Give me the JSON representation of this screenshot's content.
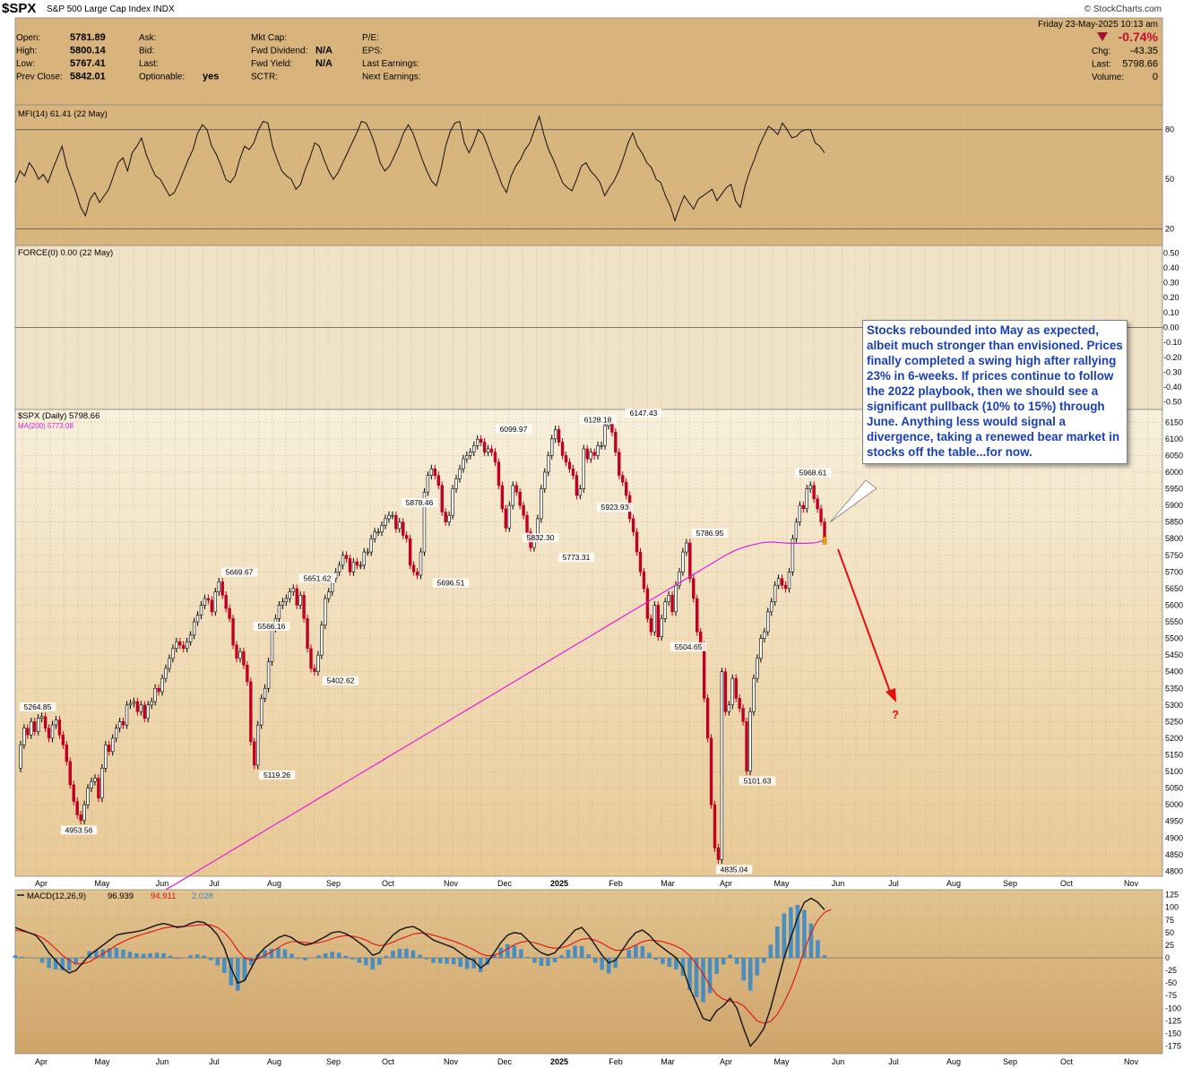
{
  "header": {
    "symbol": "$SPX",
    "name": "S&P 500 Large Cap Index",
    "exchange": "INDX",
    "brand": "© StockCharts.com",
    "date": "Friday  23-May-2025  10:13 am",
    "pct_change": "-0.74%",
    "fields_left": [
      {
        "label": "Open:",
        "value": "5781.89"
      },
      {
        "label": "High:",
        "value": "5800.14"
      },
      {
        "label": "Low:",
        "value": "5767.41"
      },
      {
        "label": "Prev Close:",
        "value": "5842.01"
      }
    ],
    "fields_mid": [
      {
        "label": "Ask:",
        "value": ""
      },
      {
        "label": "Bid:",
        "value": ""
      },
      {
        "label": "Last:",
        "value": ""
      },
      {
        "label": "Optionable:",
        "value": "yes"
      }
    ],
    "fields_mid2": [
      {
        "label": "Mkt Cap:",
        "value": ""
      },
      {
        "label": "Fwd Dividend:",
        "value": "N/A"
      },
      {
        "label": "Fwd Yield:",
        "value": "N/A"
      },
      {
        "label": "SCTR:",
        "value": ""
      }
    ],
    "fields_right": [
      {
        "label": "P/E:",
        "value": ""
      },
      {
        "label": "EPS:",
        "value": ""
      },
      {
        "label": "Last Earnings:",
        "value": ""
      },
      {
        "label": "Next Earnings:",
        "value": ""
      }
    ],
    "fields_far": [
      {
        "label": "Chg:",
        "value": "-43.35"
      },
      {
        "label": "Last:",
        "value": "5798.66"
      },
      {
        "label": "Volume:",
        "value": "0"
      }
    ]
  },
  "colors": {
    "panel_bg": "#d7b27b",
    "grid": "#b99257",
    "ma": "#e020e0",
    "signal": "#e01010",
    "up": "#000000",
    "down": "#c00020",
    "hist": "#3a8ac8",
    "callout_text": "#1a3fb4",
    "arrow": "#e01010"
  },
  "chart_data": [
    {
      "type": "line",
      "title": "MFI(14) 61.41 (22 May)",
      "ylim": [
        10,
        95
      ],
      "yticks": [
        20,
        50,
        80
      ],
      "reference_lines": [
        20,
        80
      ],
      "series": [
        {
          "name": "MFI(14)",
          "values": [
            48,
            55,
            52,
            60,
            56,
            50,
            53,
            48,
            56,
            63,
            70,
            58,
            50,
            42,
            33,
            28,
            38,
            42,
            36,
            40,
            44,
            52,
            60,
            63,
            55,
            66,
            70,
            75,
            65,
            58,
            52,
            50,
            45,
            40,
            42,
            48,
            55,
            62,
            68,
            78,
            83,
            80,
            70,
            65,
            58,
            50,
            48,
            52,
            62,
            70,
            68,
            72,
            80,
            85,
            84,
            70,
            62,
            55,
            52,
            50,
            44,
            47,
            56,
            63,
            72,
            70,
            62,
            55,
            50,
            54,
            60,
            66,
            72,
            78,
            85,
            84,
            78,
            70,
            60,
            55,
            58,
            64,
            70,
            78,
            83,
            78,
            70,
            62,
            55,
            49,
            46,
            56,
            70,
            79,
            84,
            85,
            72,
            66,
            72,
            80,
            77,
            70,
            62,
            55,
            47,
            42,
            52,
            58,
            62,
            68,
            72,
            80,
            88,
            77,
            68,
            62,
            55,
            48,
            45,
            43,
            50,
            58,
            60,
            55,
            52,
            48,
            40,
            45,
            49,
            55,
            63,
            72,
            78,
            70,
            66,
            60,
            57,
            50,
            48,
            40,
            34,
            25,
            33,
            40,
            36,
            32,
            38,
            40,
            42,
            44,
            37,
            41,
            45,
            47,
            37,
            33,
            46,
            55,
            62,
            70,
            76,
            82,
            80,
            77,
            84,
            80,
            75,
            76,
            79,
            80,
            80,
            72,
            70,
            66
          ]
        }
      ]
    },
    {
      "type": "line",
      "title": "FORCE(0) 0.00 (22 May)",
      "ylim": [
        -0.55,
        0.55
      ],
      "yticks": [
        -0.5,
        -0.4,
        -0.3,
        -0.2,
        -0.1,
        0.0,
        0.1,
        0.2,
        0.3,
        0.4,
        0.5
      ],
      "ytick_labels": [
        "-0.50",
        "-0.40",
        "-0.30",
        "-0.20",
        "-0.10",
        "0.00",
        "0.10",
        "0.20",
        "0.30",
        "0.40",
        "0.50"
      ],
      "series": [
        {
          "name": "FORCE(0)",
          "values": [
            0
          ]
        }
      ]
    },
    {
      "type": "line",
      "title": "$SPX (Daily) 5798.66",
      "legend": [
        "$SPX (Daily) 5798.66",
        "MA(200) 5773.08"
      ],
      "legend_position": "top-left",
      "ylim": [
        4785,
        6175
      ],
      "yticks": [
        4800,
        4850,
        4900,
        4950,
        5000,
        5050,
        5100,
        5150,
        5200,
        5250,
        5300,
        5350,
        5400,
        5450,
        5500,
        5550,
        5600,
        5650,
        5700,
        5750,
        5800,
        5850,
        5900,
        5950,
        6000,
        6050,
        6100,
        6150
      ],
      "x_labels": [
        "Apr",
        "May",
        "Jun",
        "Jul",
        "Aug",
        "Sep",
        "Oct",
        "Nov",
        "Dec",
        "2025",
        "Feb",
        "Mar",
        "Apr",
        "May",
        "Jun",
        "Jul",
        "Aug",
        "Sep",
        "Oct",
        "Nov"
      ],
      "series": [
        {
          "name": "$SPX (Daily)",
          "values": [
            5110,
            5180,
            5230,
            5210,
            5250,
            5220,
            5260,
            5265,
            5230,
            5200,
            5240,
            5255,
            5210,
            5180,
            5130,
            5060,
            5010,
            4970,
            4953,
            5000,
            5050,
            5070,
            5080,
            5020,
            5110,
            5180,
            5160,
            5200,
            5230,
            5250,
            5240,
            5300,
            5305,
            5310,
            5280,
            5300,
            5260,
            5300,
            5310,
            5350,
            5340,
            5380,
            5410,
            5440,
            5470,
            5490,
            5480,
            5470,
            5490,
            5510,
            5550,
            5570,
            5600,
            5620,
            5615,
            5580,
            5640,
            5670,
            5630,
            5590,
            5560,
            5480,
            5440,
            5460,
            5420,
            5370,
            5190,
            5119,
            5240,
            5320,
            5350,
            5430,
            5530,
            5560,
            5600,
            5610,
            5620,
            5640,
            5650,
            5600,
            5630,
            5560,
            5470,
            5410,
            5400,
            5450,
            5540,
            5620,
            5640,
            5680,
            5700,
            5720,
            5750,
            5740,
            5700,
            5730,
            5720,
            5720,
            5760,
            5760,
            5800,
            5820,
            5820,
            5840,
            5860,
            5870,
            5870,
            5830,
            5850,
            5810,
            5800,
            5720,
            5700,
            5690,
            5760,
            5940,
            5990,
            6010,
            5990,
            5960,
            5880,
            5850,
            5870,
            5950,
            5980,
            6010,
            6040,
            6050,
            6060,
            6080,
            6099,
            6090,
            6060,
            6070,
            6060,
            6030,
            5960,
            5890,
            5832,
            5900,
            5960,
            5940,
            5900,
            5870,
            5820,
            5773,
            5800,
            5860,
            5950,
            6000,
            6050,
            6100,
            6128,
            6090,
            6050,
            6030,
            6010,
            5990,
            5930,
            5950,
            6070,
            6040,
            6060,
            6050,
            6080,
            6080,
            6140,
            6147,
            6120,
            6060,
            5990,
            5970,
            5930,
            5860,
            5820,
            5760,
            5700,
            5650,
            5560,
            5520,
            5600,
            5505,
            5560,
            5610,
            5630,
            5580,
            5660,
            5700,
            5760,
            5787,
            5680,
            5620,
            5520,
            5480,
            5320,
            5200,
            5000,
            4870,
            4835,
            5400,
            5280,
            5300,
            5380,
            5320,
            5290,
            5250,
            5101,
            5280,
            5380,
            5440,
            5500,
            5520,
            5580,
            5610,
            5660,
            5680,
            5660,
            5650,
            5700,
            5800,
            5850,
            5900,
            5890,
            5950,
            5960,
            5920,
            5890,
            5850,
            5800
          ]
        },
        {
          "name": "MA(200)",
          "values": [
            4745,
            4760,
            4776,
            4792,
            4808,
            4824,
            4840,
            4856,
            4872,
            4888,
            4904,
            4920,
            4936,
            4952,
            4968,
            4984,
            5000,
            5016,
            5032,
            5048,
            5064,
            5080,
            5096,
            5112,
            5128,
            5144,
            5160,
            5176,
            5192,
            5208,
            5224,
            5240,
            5256,
            5272,
            5288,
            5304,
            5320,
            5336,
            5352,
            5368,
            5384,
            5400,
            5416,
            5432,
            5448,
            5464,
            5480,
            5496,
            5512,
            5528,
            5544,
            5560,
            5576,
            5592,
            5608,
            5624,
            5640,
            5656,
            5672,
            5688,
            5704,
            5720,
            5736,
            5752,
            5765,
            5775,
            5782,
            5788,
            5790,
            5788,
            5786,
            5786,
            5786,
            5788,
            5795
          ]
        }
      ],
      "data_labels": [
        {
          "text": "5264.85",
          "value": 5264.85
        },
        {
          "text": "4953.56",
          "value": 4953.56
        },
        {
          "text": "5669.67",
          "value": 5669.67
        },
        {
          "text": "5566.16",
          "value": 5566.16
        },
        {
          "text": "5119.26",
          "value": 5119.26
        },
        {
          "text": "5651.62",
          "value": 5651.62
        },
        {
          "text": "5402.62",
          "value": 5402.62
        },
        {
          "text": "5878.46",
          "value": 5878.46
        },
        {
          "text": "5696.51",
          "value": 5696.51
        },
        {
          "text": "6099.97",
          "value": 6099.97
        },
        {
          "text": "5832.30",
          "value": 5832.3
        },
        {
          "text": "5773.31",
          "value": 5773.31
        },
        {
          "text": "6128.18",
          "value": 6128.18
        },
        {
          "text": "5923.93",
          "value": 5923.93
        },
        {
          "text": "6147.43",
          "value": 6147.43
        },
        {
          "text": "5786.95",
          "value": 5786.95
        },
        {
          "text": "5504.65",
          "value": 5504.65
        },
        {
          "text": "4835.04",
          "value": 4835.04
        },
        {
          "text": "5101.63",
          "value": 5101.63
        },
        {
          "text": "5968.61",
          "value": 5968.61
        }
      ],
      "annotation": "Stocks rebounded into May as expected, albeit much stronger than envisioned. Prices finally completed a swing high after rallying 23% in 6-weeks. If prices continue to follow the 2022 playbook, then we should see a significant pullback (10% to 15%) through June. Anything less would signal a divergence, taking a renewed bear market in stocks off the table...for now.",
      "arrow_label": "?"
    },
    {
      "type": "line",
      "title": "MACD(12,26,9)",
      "legend": [
        "MACD(12,26,9)",
        "96.939",
        "94.911",
        "2.028"
      ],
      "ylim": [
        -190,
        135
      ],
      "yticks": [
        -175,
        -150,
        -125,
        -100,
        -75,
        -50,
        -25,
        0,
        25,
        50,
        75,
        100,
        125
      ],
      "series": [
        {
          "name": "MACD",
          "values": [
            60,
            55,
            50,
            45,
            30,
            10,
            -5,
            -20,
            -30,
            -25,
            -10,
            5,
            15,
            25,
            35,
            45,
            48,
            50,
            52,
            55,
            60,
            65,
            68,
            65,
            60,
            62,
            68,
            72,
            70,
            60,
            45,
            20,
            -20,
            -50,
            -45,
            -20,
            5,
            20,
            30,
            40,
            45,
            40,
            30,
            25,
            28,
            35,
            42,
            50,
            52,
            48,
            40,
            30,
            20,
            5,
            10,
            30,
            45,
            55,
            60,
            62,
            55,
            45,
            35,
            30,
            25,
            20,
            10,
            0,
            -5,
            -20,
            -10,
            10,
            30,
            45,
            50,
            48,
            35,
            20,
            10,
            5,
            10,
            25,
            40,
            55,
            60,
            45,
            25,
            5,
            -10,
            -5,
            15,
            35,
            50,
            55,
            45,
            30,
            20,
            10,
            0,
            -20,
            -60,
            -90,
            -120,
            -125,
            -105,
            -95,
            -80,
            -100,
            -140,
            -175,
            -160,
            -140,
            -100,
            -50,
            0,
            40,
            80,
            110,
            118,
            110,
            95
          ]
        },
        {
          "name": "Signal",
          "values": [
            55,
            53,
            50,
            46,
            40,
            30,
            18,
            5,
            -5,
            -12,
            -12,
            -8,
            0,
            8,
            16,
            25,
            32,
            38,
            43,
            47,
            51,
            55,
            59,
            61,
            62,
            62,
            63,
            65,
            66,
            65,
            60,
            50,
            35,
            15,
            0,
            -5,
            -2,
            5,
            12,
            20,
            28,
            32,
            32,
            30,
            29,
            30,
            33,
            38,
            42,
            44,
            43,
            40,
            35,
            28,
            24,
            26,
            31,
            37,
            42,
            47,
            49,
            48,
            45,
            41,
            37,
            33,
            28,
            22,
            16,
            8,
            4,
            5,
            10,
            18,
            26,
            31,
            33,
            30,
            26,
            21,
            19,
            20,
            24,
            31,
            37,
            38,
            35,
            29,
            21,
            15,
            15,
            19,
            25,
            32,
            35,
            34,
            32,
            28,
            23,
            16,
            4,
            -12,
            -32,
            -55,
            -73,
            -82,
            -86,
            -88,
            -95,
            -110,
            -125,
            -130,
            -126,
            -112,
            -88,
            -60,
            -25,
            15,
            50,
            75,
            90,
            96
          ]
        }
      ]
    }
  ]
}
